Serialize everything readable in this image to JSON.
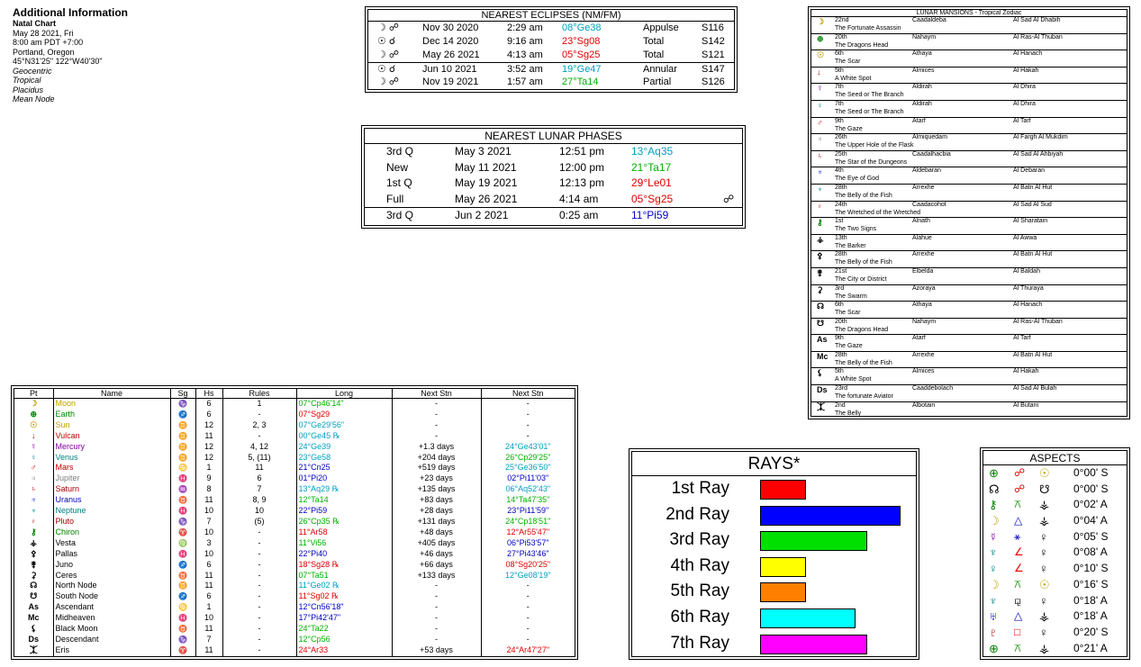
{
  "info": {
    "title": "Additional Information",
    "chart": "Natal Chart",
    "date": "May 28 2021, Fri",
    "time": "8:00 am  PDT +7:00",
    "place": "Portland, Oregon",
    "coords": "45°N31'25\"  122°W40'30\"",
    "options": [
      "Geocentric",
      "Tropical",
      "Placidus",
      "Mean Node"
    ]
  },
  "eclipses": {
    "title": "NEAREST ECLIPSES (NM/FM)",
    "rows": [
      {
        "icon": "☽ ☍",
        "date": "Nov 30 2020",
        "time": "2:29 am",
        "pos": "08°Ge38",
        "color": "#00a0c0",
        "type": "Appulse",
        "saros": "S116"
      },
      {
        "icon": "☉ ☌",
        "date": "Dec 14 2020",
        "time": "9:16 am",
        "pos": "23°Sg08",
        "color": "#e00000",
        "type": "Total",
        "saros": "S142"
      },
      {
        "icon": "☽ ☍",
        "date": "May 26 2021",
        "time": "4:13 am",
        "pos": "05°Sg25",
        "color": "#e00000",
        "type": "Total",
        "saros": "S121"
      },
      {
        "icon": "☉ ☌",
        "date": "Jun 10 2021",
        "time": "3:52 am",
        "pos": "19°Ge47",
        "color": "#00a0c0",
        "type": "Annular",
        "saros": "S147"
      },
      {
        "icon": "☽ ☍",
        "date": "Nov 19 2021",
        "time": "1:57 am",
        "pos": "27°Ta14",
        "color": "#00b000",
        "type": "Partial",
        "saros": "S126"
      }
    ]
  },
  "phases": {
    "title": "NEAREST LUNAR PHASES",
    "rows": [
      {
        "phase": "3rd Q",
        "date": "May 3 2021",
        "time": "12:51 pm",
        "pos": "13°Aq35",
        "color": "#00a0c0",
        "mark": ""
      },
      {
        "phase": "New",
        "date": "May 11 2021",
        "time": "12:00 pm",
        "pos": "21°Ta17",
        "color": "#00b000",
        "mark": ""
      },
      {
        "phase": "1st Q",
        "date": "May 19 2021",
        "time": "12:13 pm",
        "pos": "29°Le01",
        "color": "#e00000",
        "mark": ""
      },
      {
        "phase": "Full",
        "date": "May 26 2021",
        "time": "4:14 am",
        "pos": "05°Sg25",
        "color": "#e00000",
        "mark": "☍"
      },
      {
        "phase": "3rd Q",
        "date": "Jun 2 2021",
        "time": "0:25 am",
        "pos": "11°Pi59",
        "color": "#0000c0",
        "mark": ""
      }
    ]
  },
  "mansions": {
    "title": "LUNAR MANSIONS - Tropical Zodiac",
    "rows": [
      {
        "icon": "☽",
        "ic": "#c0a000",
        "num": "22nd",
        "name": "Caadaldeba",
        "arab": "Al Sad Al Dhabih",
        "desc": "The Fortunate Assassin"
      },
      {
        "icon": "⊕",
        "ic": "#008000",
        "num": "20th",
        "name": "Nahaym",
        "arab": "Al Ras-Al Thuban",
        "desc": "The Dragons Head"
      },
      {
        "icon": "☉",
        "ic": "#c0a000",
        "num": "6th",
        "name": "Athaya",
        "arab": "Al Hanach",
        "desc": "The Scar"
      },
      {
        "icon": "↓",
        "ic": "#c00000",
        "num": "5th",
        "name": "Almices",
        "arab": "Al Hakah",
        "desc": "A White Spot"
      },
      {
        "icon": "☿",
        "ic": "#8000a0",
        "num": "7th",
        "name": "Aldirah",
        "arab": "Al Dhira",
        "desc": "The Seed or The Branch"
      },
      {
        "icon": "♀",
        "ic": "#008080",
        "num": "7th",
        "name": "Aldirah",
        "arab": "Al Dhira",
        "desc": "The Seed or The Branch"
      },
      {
        "icon": "♂",
        "ic": "#c00000",
        "num": "9th",
        "name": "Atarf",
        "arab": "Al Tarf",
        "desc": "The Gaze"
      },
      {
        "icon": "♃",
        "ic": "#808080",
        "num": "26th",
        "name": "Almiquedam",
        "arab": "Al Fargh Al Mukdim",
        "desc": "The Upper Hole of the Flask"
      },
      {
        "icon": "♄",
        "ic": "#a00000",
        "num": "25th",
        "name": "Caadalhacbia",
        "arab": "Al Sad Al Ahbiyah",
        "desc": "The Star of the Dungeons"
      },
      {
        "icon": "♅",
        "ic": "#0000c0",
        "num": "4th",
        "name": "Aldebaran",
        "arab": "Al Debaran",
        "desc": "The Eye of God"
      },
      {
        "icon": "♆",
        "ic": "#008080",
        "num": "28th",
        "name": "Arrexhe",
        "arab": "Al Batn Al Hut",
        "desc": "The Belly of the Fish"
      },
      {
        "icon": "♇",
        "ic": "#a00000",
        "num": "24th",
        "name": "Caadacohot",
        "arab": "Al Sad Al Sud",
        "desc": "The Wretched of the Wretched"
      },
      {
        "icon": "⚷",
        "ic": "#008000",
        "num": "1st",
        "name": "Alnath",
        "arab": "Al Sharatain",
        "desc": "The Two Signs"
      },
      {
        "icon": "⚶",
        "ic": "#000000",
        "num": "13th",
        "name": "Alahue",
        "arab": "Al Awwa",
        "desc": "The Barker"
      },
      {
        "icon": "⚴",
        "ic": "#000000",
        "num": "28th",
        "name": "Arrexhe",
        "arab": "Al Batn Al Hut",
        "desc": "The Belly of the Fish"
      },
      {
        "icon": "⚵",
        "ic": "#000000",
        "num": "21st",
        "name": "Elbelda",
        "arab": "Al Baldah",
        "desc": "The City or District"
      },
      {
        "icon": "⚳",
        "ic": "#000000",
        "num": "3rd",
        "name": "Azoraya",
        "arab": "Al Thuraya",
        "desc": "The Swarm"
      },
      {
        "icon": "☊",
        "ic": "#000000",
        "num": "6th",
        "name": "Athaya",
        "arab": "Al Hanach",
        "desc": "The Scar"
      },
      {
        "icon": "☋",
        "ic": "#000000",
        "num": "20th",
        "name": "Nahaym",
        "arab": "Al Ras-Al Thuban",
        "desc": "The Dragons Head"
      },
      {
        "icon": "As",
        "ic": "#000000",
        "num": "9th",
        "name": "Atarf",
        "arab": "Al Tarf",
        "desc": "The Gaze"
      },
      {
        "icon": "Mc",
        "ic": "#000000",
        "num": "28th",
        "name": "Arrexhe",
        "arab": "Al Batn Al Hut",
        "desc": "The Belly of the Fish"
      },
      {
        "icon": "⚸",
        "ic": "#000000",
        "num": "5th",
        "name": "Almices",
        "arab": "Al Hakah",
        "desc": "A White Spot"
      },
      {
        "icon": "Ds",
        "ic": "#000000",
        "num": "23rd",
        "name": "Caaddebolach",
        "arab": "Al Sad Al Bulah",
        "desc": "The fortunate Aviator"
      },
      {
        "icon": "⯰",
        "ic": "#000000",
        "num": "2nd",
        "name": "Albotain",
        "arab": "Al Butani",
        "desc": "The Belly"
      }
    ]
  },
  "planets": {
    "headers": [
      "Pt",
      "Name",
      "Sg",
      "Hs",
      "Rules",
      "Long",
      "Next Stn",
      "Next Stn"
    ],
    "rows": [
      {
        "g": "☽",
        "name": "Moon",
        "nc": "#c0a000",
        "sg": "♑",
        "sc": "#00a000",
        "hs": "6",
        "rules": "1",
        "long": "07°Cp46'14\"",
        "lc": "#00b000",
        "n1": "-",
        "n2": "-",
        "n2c": "#000000"
      },
      {
        "g": "⊕",
        "name": "Earth",
        "nc": "#008000",
        "sg": "♐",
        "sc": "#c00000",
        "hs": "6",
        "rules": "-",
        "long": "07°Sg29",
        "lc": "#e00000",
        "n1": "-",
        "n2": "-",
        "n2c": "#000000"
      },
      {
        "g": "☉",
        "name": "Sun",
        "nc": "#c0a000",
        "sg": "♊",
        "sc": "#0090c0",
        "hs": "12",
        "rules": "2, 3",
        "long": "07°Ge29'56\"",
        "lc": "#00a0c0",
        "n1": "-",
        "n2": "-",
        "n2c": "#000000"
      },
      {
        "g": "↓",
        "name": "Vulcan",
        "nc": "#c00000",
        "sg": "♊",
        "sc": "#0090c0",
        "hs": "11",
        "rules": "-",
        "long": "00°Ge45 ℞",
        "lc": "#00a0c0",
        "n1": "-",
        "n2": "-",
        "n2c": "#000000"
      },
      {
        "g": "☿",
        "name": "Mercury",
        "nc": "#8000a0",
        "sg": "♊",
        "sc": "#0090c0",
        "hs": "12",
        "rules": "4, 12",
        "long": "24°Ge39",
        "lc": "#00a0c0",
        "n1": "+1.3 days",
        "n2": "24°Ge43'01\"",
        "n2c": "#00a0c0"
      },
      {
        "g": "♀",
        "name": "Venus",
        "nc": "#008080",
        "sg": "♊",
        "sc": "#0090c0",
        "hs": "12",
        "rules": "5, (11)",
        "long": "23°Ge58",
        "lc": "#00a0c0",
        "n1": "+204 days",
        "n2": "26°Cp29'25\"",
        "n2c": "#00b000"
      },
      {
        "g": "♂",
        "name": "Mars",
        "nc": "#c00000",
        "sg": "♋",
        "sc": "#0000c0",
        "hs": "1",
        "rules": "11",
        "long": "21°Cn25",
        "lc": "#0000c0",
        "n1": "+519 days",
        "n2": "25°Ge36'50\"",
        "n2c": "#00a0c0"
      },
      {
        "g": "♃",
        "name": "Jupiter",
        "nc": "#808080",
        "sg": "♓",
        "sc": "#0000c0",
        "hs": "9",
        "rules": "6",
        "long": "01°Pi20",
        "lc": "#0000c0",
        "n1": "+23 days",
        "n2": "02°Pi11'03\"",
        "n2c": "#0000c0"
      },
      {
        "g": "♄",
        "name": "Saturn",
        "nc": "#a00000",
        "sg": "♒",
        "sc": "#0090c0",
        "hs": "8",
        "rules": "7",
        "long": "13°Aq29 ℞",
        "lc": "#00a0c0",
        "n1": "+135 days",
        "n2": "06°Aq52'43\"",
        "n2c": "#00a0c0"
      },
      {
        "g": "♅",
        "name": "Uranus",
        "nc": "#0000c0",
        "sg": "♉",
        "sc": "#00a000",
        "hs": "11",
        "rules": "8, 9",
        "long": "12°Ta14",
        "lc": "#00b000",
        "n1": "+83 days",
        "n2": "14°Ta47'35\"",
        "n2c": "#00b000"
      },
      {
        "g": "♆",
        "name": "Neptune",
        "nc": "#008080",
        "sg": "♓",
        "sc": "#0000c0",
        "hs": "10",
        "rules": "10",
        "long": "22°Pi59",
        "lc": "#0000c0",
        "n1": "+28 days",
        "n2": "23°Pi11'59\"",
        "n2c": "#0000c0"
      },
      {
        "g": "♇",
        "name": "Pluto",
        "nc": "#a00000",
        "sg": "♑",
        "sc": "#00a000",
        "hs": "7",
        "rules": "(5)",
        "long": "26°Cp35 ℞",
        "lc": "#00b000",
        "n1": "+131 days",
        "n2": "24°Cp18'51\"",
        "n2c": "#00b000"
      },
      {
        "g": "⚷",
        "name": "Chiron",
        "nc": "#008000",
        "sg": "♈",
        "sc": "#c00000",
        "hs": "10",
        "rules": "-",
        "long": "11°Ar58",
        "lc": "#e00000",
        "n1": "+48 days",
        "n2": "12°Ar55'47\"",
        "n2c": "#e00000"
      },
      {
        "g": "⚶",
        "name": "Vesta",
        "nc": "#000000",
        "sg": "♍",
        "sc": "#00a000",
        "hs": "3",
        "rules": "-",
        "long": "11°Vi56",
        "lc": "#00b000",
        "n1": "+405 days",
        "n2": "06°Pi53'57\"",
        "n2c": "#0000c0"
      },
      {
        "g": "⚴",
        "name": "Pallas",
        "nc": "#000000",
        "sg": "♓",
        "sc": "#0000c0",
        "hs": "10",
        "rules": "-",
        "long": "22°Pi40",
        "lc": "#0000c0",
        "n1": "+46 days",
        "n2": "27°Pi43'46\"",
        "n2c": "#0000c0"
      },
      {
        "g": "⚵",
        "name": "Juno",
        "nc": "#000000",
        "sg": "♐",
        "sc": "#c00000",
        "hs": "6",
        "rules": "-",
        "long": "18°Sg28 ℞",
        "lc": "#e00000",
        "n1": "+66 days",
        "n2": "08°Sg20'25\"",
        "n2c": "#e00000"
      },
      {
        "g": "⚳",
        "name": "Ceres",
        "nc": "#000000",
        "sg": "♉",
        "sc": "#00a000",
        "hs": "11",
        "rules": "-",
        "long": "07°Ta51",
        "lc": "#00b000",
        "n1": "+133 days",
        "n2": "12°Ge08'19\"",
        "n2c": "#00a0c0"
      },
      {
        "g": "☊",
        "name": "North Node",
        "nc": "#000000",
        "sg": "♊",
        "sc": "#0090c0",
        "hs": "11",
        "rules": "-",
        "long": "11°Ge02 ℞",
        "lc": "#00a0c0",
        "n1": "-",
        "n2": "-",
        "n2c": "#000000"
      },
      {
        "g": "☋",
        "name": "South Node",
        "nc": "#000000",
        "sg": "♐",
        "sc": "#c00000",
        "hs": "6",
        "rules": "-",
        "long": "11°Sg02 ℞",
        "lc": "#e00000",
        "n1": "-",
        "n2": "-",
        "n2c": "#000000"
      },
      {
        "g": "As",
        "name": "Ascendant",
        "nc": "#000000",
        "sg": "♋",
        "sc": "#0000c0",
        "hs": "1",
        "rules": "-",
        "long": "12°Cn56'18\"",
        "lc": "#0000c0",
        "n1": "-",
        "n2": "-",
        "n2c": "#000000"
      },
      {
        "g": "Mc",
        "name": "Midheaven",
        "nc": "#000000",
        "sg": "♓",
        "sc": "#0000c0",
        "hs": "10",
        "rules": "-",
        "long": "17°Pi42'47\"",
        "lc": "#0000c0",
        "n1": "-",
        "n2": "-",
        "n2c": "#000000"
      },
      {
        "g": "⚸",
        "name": "Black Moon",
        "nc": "#000000",
        "sg": "♉",
        "sc": "#00a000",
        "hs": "11",
        "rules": "-",
        "long": "24°Ta22",
        "lc": "#00b000",
        "n1": "-",
        "n2": "-",
        "n2c": "#000000"
      },
      {
        "g": "Ds",
        "name": "Descendant",
        "nc": "#000000",
        "sg": "♑",
        "sc": "#00a000",
        "hs": "7",
        "rules": "-",
        "long": "12°Cp56",
        "lc": "#00b000",
        "n1": "-",
        "n2": "-",
        "n2c": "#000000"
      },
      {
        "g": "⯰",
        "name": "Eris",
        "nc": "#000000",
        "sg": "♈",
        "sc": "#c00000",
        "hs": "11",
        "rules": "-",
        "long": "24°Ar33",
        "lc": "#e00000",
        "n1": "+53 days",
        "n2": "24°Ar47'27\"",
        "n2c": "#e00000"
      }
    ]
  },
  "rays": {
    "title": "RAYS*",
    "max": 100,
    "items": [
      {
        "label": "1st Ray",
        "value": 33,
        "color": "#ff0000"
      },
      {
        "label": "2nd Ray",
        "value": 100,
        "color": "#0000ff"
      },
      {
        "label": "3rd Ray",
        "value": 76,
        "color": "#00e000"
      },
      {
        "label": "4th Ray",
        "value": 33,
        "color": "#ffff00"
      },
      {
        "label": "5th Ray",
        "value": 33,
        "color": "#ff8000"
      },
      {
        "label": "6th Ray",
        "value": 68,
        "color": "#00ffff"
      },
      {
        "label": "7th Ray",
        "value": 76,
        "color": "#ff00ff"
      }
    ]
  },
  "aspects": {
    "title": "ASPECTS",
    "rows": [
      {
        "p1": "⊕",
        "c1": "#008000",
        "a": "☍",
        "ac": "#e00000",
        "p2": "☉",
        "c2": "#c0a000",
        "orb": "0°00' S"
      },
      {
        "p1": "☊",
        "c1": "#000000",
        "a": "☍",
        "ac": "#e00000",
        "p2": "☋",
        "c2": "#000000",
        "orb": "0°00' S"
      },
      {
        "p1": "⚷",
        "c1": "#008000",
        "a": "⚻",
        "ac": "#008000",
        "p2": "⚶",
        "c2": "#000000",
        "orb": "0°02' A"
      },
      {
        "p1": "☽",
        "c1": "#c0a000",
        "a": "△",
        "ac": "#0000c0",
        "p2": "⚶",
        "c2": "#000000",
        "orb": "0°04' A"
      },
      {
        "p1": "☿",
        "c1": "#8000a0",
        "a": "⚹",
        "ac": "#0000c0",
        "p2": "♀",
        "c2": "#000000",
        "orb": "0°05' S"
      },
      {
        "p1": "♆",
        "c1": "#008080",
        "a": "∠",
        "ac": "#e00000",
        "p2": "♀",
        "c2": "#000000",
        "orb": "0°08' A"
      },
      {
        "p1": "♀",
        "c1": "#008080",
        "a": "∠",
        "ac": "#e00000",
        "p2": "♀",
        "c2": "#000000",
        "orb": "0°10' S"
      },
      {
        "p1": "☽",
        "c1": "#c0a000",
        "a": "⚻",
        "ac": "#008000",
        "p2": "☉",
        "c2": "#c0a000",
        "orb": "0°16' S"
      },
      {
        "p1": "♆",
        "c1": "#008080",
        "a": "⚼",
        "ac": "#000000",
        "p2": "♀",
        "c2": "#000000",
        "orb": "0°18' A"
      },
      {
        "p1": "♅",
        "c1": "#0000c0",
        "a": "△",
        "ac": "#0000c0",
        "p2": "⚶",
        "c2": "#000000",
        "orb": "0°18' A"
      },
      {
        "p1": "♇",
        "c1": "#a00000",
        "a": "□",
        "ac": "#e00000",
        "p2": "♀",
        "c2": "#000000",
        "orb": "0°20' S"
      },
      {
        "p1": "⊕",
        "c1": "#008000",
        "a": "⚻",
        "ac": "#008000",
        "p2": "⚶",
        "c2": "#000000",
        "orb": "0°21' A"
      }
    ]
  }
}
